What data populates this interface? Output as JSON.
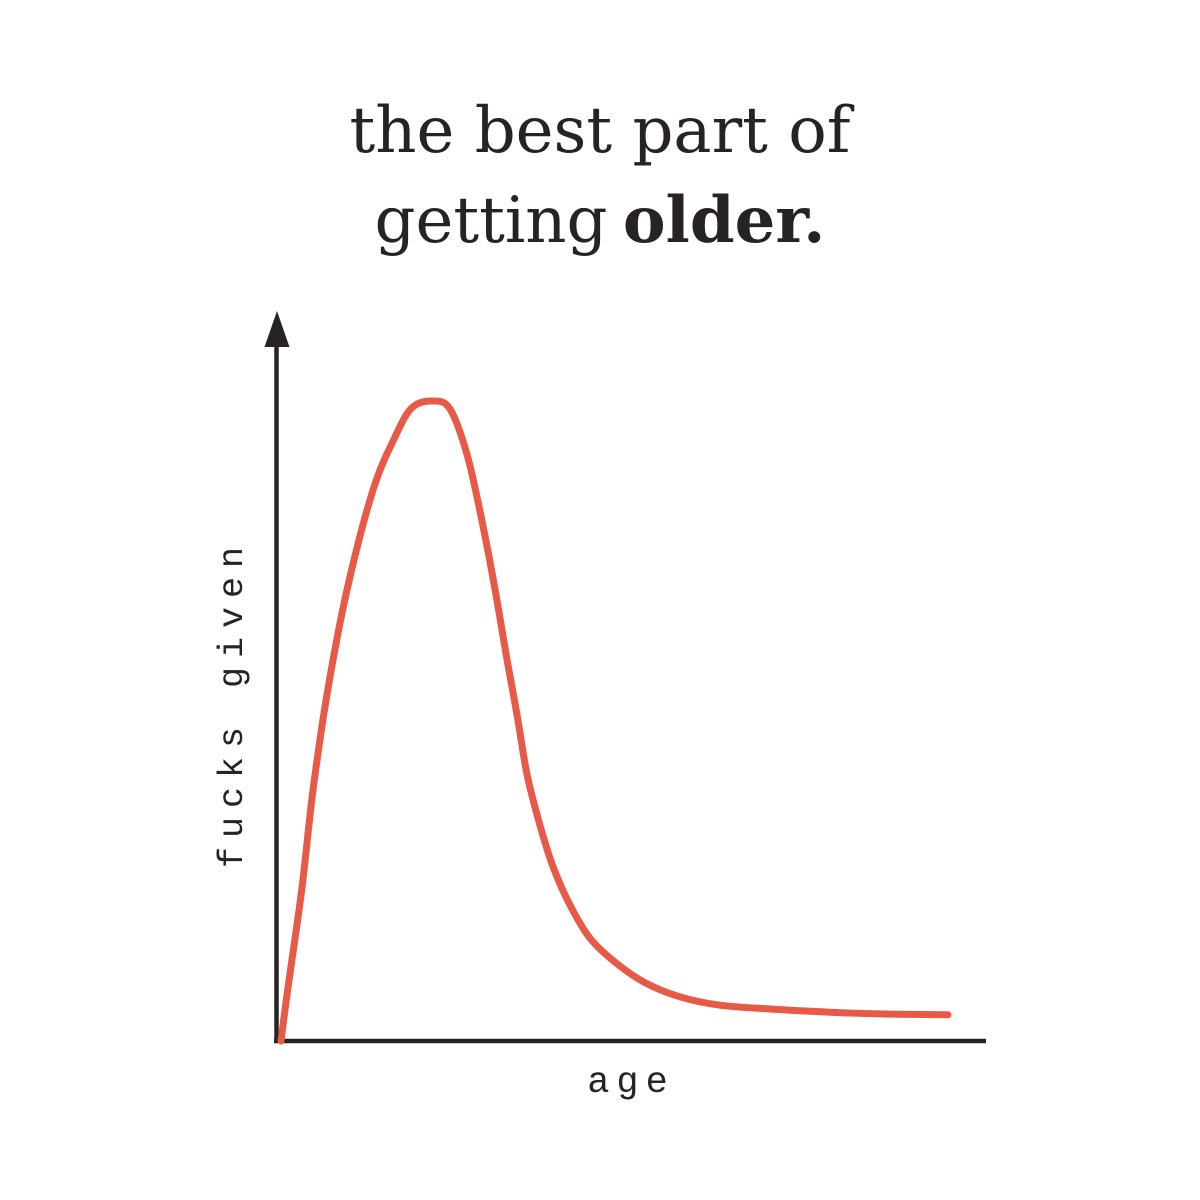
{
  "title": {
    "line1": "the best part of",
    "line2_regular": "getting",
    "line2_bold": "older.",
    "full": "the best part of getting older."
  },
  "colors": {
    "curve": "#E75A48",
    "axis": "#272324",
    "text": "#272324",
    "background": "#FFFFFF"
  },
  "chart_data": {
    "type": "line",
    "title": "the best part of getting older.",
    "xlabel": "age",
    "ylabel": "fucks given",
    "x_axis": {
      "min": 0,
      "max": 100,
      "tick_labels": "none",
      "arrowhead": false
    },
    "y_axis": {
      "min": 0,
      "max": 100,
      "tick_labels": "none",
      "arrowhead": true
    },
    "grid": false,
    "legend": false,
    "series": [
      {
        "name": "fucks given over age",
        "color": "#E75A48",
        "points": [
          [
            0,
            0
          ],
          [
            1,
            8
          ],
          [
            3.1,
            23.6
          ],
          [
            4.8,
            39.2
          ],
          [
            7,
            54.8
          ],
          [
            9.9,
            70.5
          ],
          [
            13.8,
            86.1
          ],
          [
            17.1,
            94.4
          ],
          [
            19.6,
            98.9
          ],
          [
            22.6,
            100
          ],
          [
            25.3,
            98.8
          ],
          [
            27.9,
            91.6
          ],
          [
            30.1,
            81.4
          ],
          [
            32.1,
            70.5
          ],
          [
            33.9,
            59.5
          ],
          [
            35.4,
            50.9
          ],
          [
            36.9,
            41.6
          ],
          [
            38.8,
            33.8
          ],
          [
            40.8,
            27.2
          ],
          [
            43.3,
            21.3
          ],
          [
            46.3,
            16.1
          ],
          [
            50.1,
            12.3
          ],
          [
            54.6,
            9.1
          ],
          [
            59.8,
            6.9
          ],
          [
            65.8,
            5.6
          ],
          [
            73.3,
            5
          ],
          [
            82.3,
            4.5
          ],
          [
            91.3,
            4.2
          ],
          [
            100,
            4.1
          ]
        ]
      }
    ],
    "annotation": "curve rises steeply early in life, peaks at roughly a quarter of the age axis, then decays toward a near-zero asymptote"
  }
}
